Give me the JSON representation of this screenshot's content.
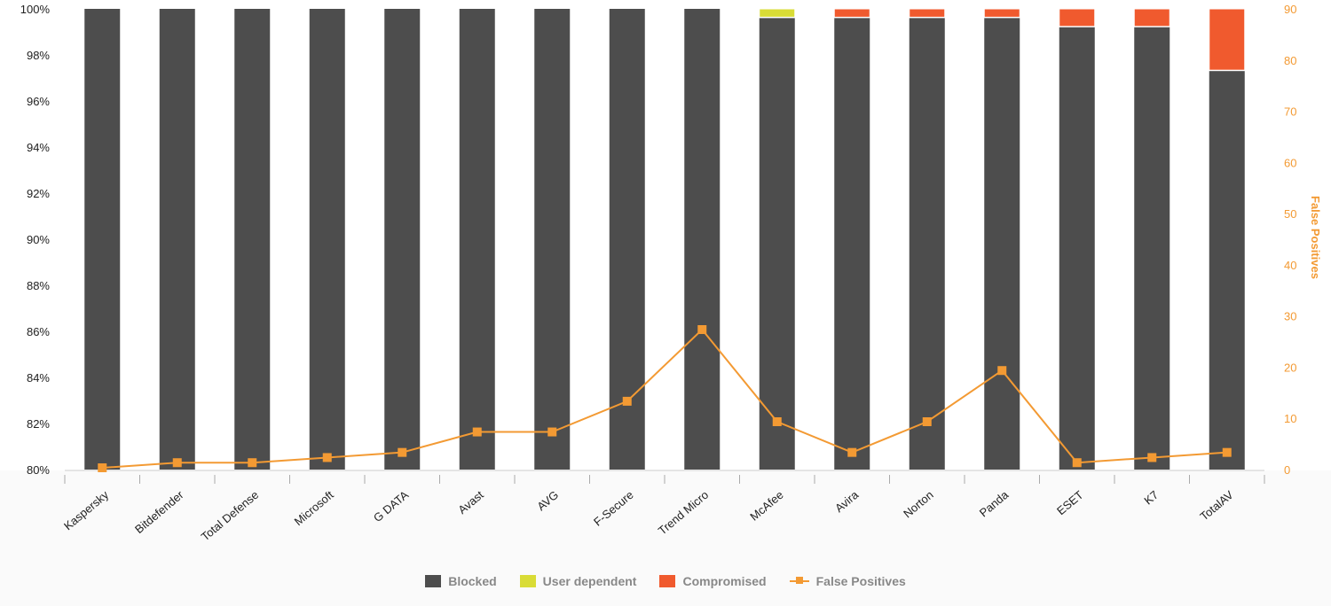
{
  "chart_data": {
    "type": "bar",
    "stacked": true,
    "categories": [
      "Kaspersky",
      "Bitdefender",
      "Total Defense",
      "Microsoft",
      "G DATA",
      "Avast",
      "AVG",
      "F-Secure",
      "Trend Micro",
      "McAfee",
      "Avira",
      "Norton",
      "Panda",
      "ESET",
      "K7",
      "TotalAV"
    ],
    "series": [
      {
        "name": "Blocked",
        "color": "#4d4d4d",
        "values": [
          100,
          100,
          100,
          100,
          100,
          100,
          100,
          100,
          100,
          99.6,
          99.6,
          99.6,
          99.6,
          99.2,
          99.2,
          97.3
        ]
      },
      {
        "name": "User dependent",
        "color": "#d9dc36",
        "values": [
          0,
          0,
          0,
          0,
          0,
          0,
          0,
          0,
          0,
          0.4,
          0,
          0,
          0,
          0,
          0,
          0
        ]
      },
      {
        "name": "Compromised",
        "color": "#f05a2e",
        "values": [
          0,
          0,
          0,
          0,
          0,
          0,
          0,
          0,
          0,
          0,
          0.4,
          0.4,
          0.4,
          0.8,
          0.8,
          2.7
        ]
      },
      {
        "name": "False Positives",
        "type": "line",
        "axis": "right",
        "color": "#f39a33",
        "marker": "square",
        "values": [
          0,
          1,
          1,
          2,
          3,
          7,
          7,
          13,
          27,
          9,
          3,
          9,
          19,
          1,
          2,
          3
        ]
      }
    ],
    "ylim": [
      80,
      100
    ],
    "yticks": [
      "80%",
      "82%",
      "84%",
      "86%",
      "88%",
      "90%",
      "92%",
      "94%",
      "96%",
      "98%",
      "100%"
    ],
    "y2lim": [
      0,
      90
    ],
    "y2ticks": [
      "0",
      "10",
      "20",
      "30",
      "40",
      "50",
      "60",
      "70",
      "80",
      "90"
    ],
    "y2label": "False Positives",
    "grid": false,
    "legend": "bottom"
  }
}
